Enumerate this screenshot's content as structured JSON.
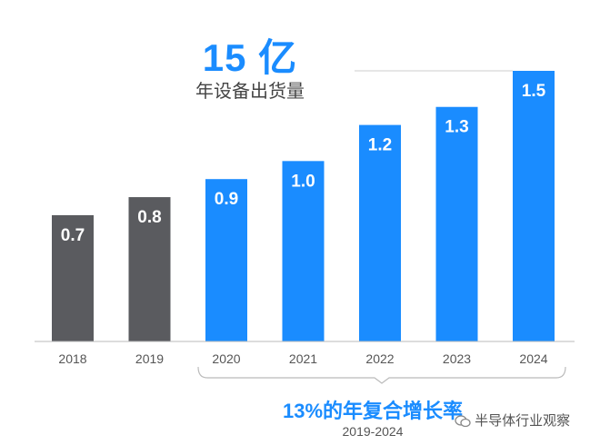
{
  "headline": {
    "value": "15 亿",
    "subtitle": "年设备出货量"
  },
  "cagr": {
    "rate": "13%的年复合增长率",
    "range": "2019-2024"
  },
  "watermark": {
    "text": "半导体行业观察",
    "icon": "wechat-icon"
  },
  "colors": {
    "historical": "#5a5b5f",
    "forecast": "#1a8cff",
    "label": "#ffffff",
    "axis": "#666666"
  },
  "chart_data": {
    "type": "bar",
    "categories": [
      "2018",
      "2019",
      "2020",
      "2021",
      "2022",
      "2023",
      "2024"
    ],
    "values": [
      0.7,
      0.8,
      0.9,
      1.0,
      1.2,
      1.3,
      1.5
    ],
    "data_labels": [
      "0.7",
      "0.8",
      "0.9",
      "1.0",
      "1.2",
      "1.3",
      "1.5"
    ],
    "bar_colors": [
      "#5a5b5f",
      "#5a5b5f",
      "#1a8cff",
      "#1a8cff",
      "#1a8cff",
      "#1a8cff",
      "#1a8cff"
    ],
    "ylim": [
      0,
      1.5
    ],
    "grid": false,
    "legend": "none"
  }
}
